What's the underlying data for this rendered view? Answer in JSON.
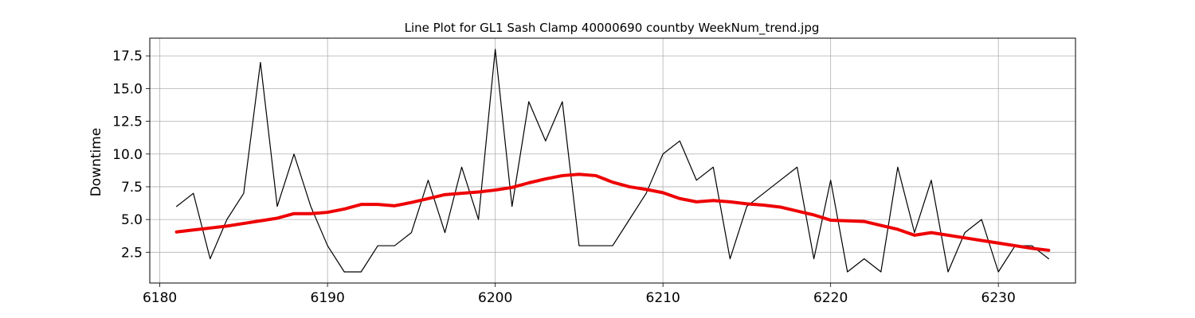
{
  "chart_data": {
    "type": "line",
    "title": "Line Plot for GL1 Sash Clamp 40000690 countby WeekNum_trend.jpg",
    "xlabel": "",
    "ylabel": "Downtime",
    "xlim": [
      6179.4,
      6234.6
    ],
    "ylim": [
      0.15,
      18.85
    ],
    "xticks": [
      6180,
      6190,
      6200,
      6210,
      6220,
      6230
    ],
    "yticks": [
      2.5,
      5.0,
      7.5,
      10.0,
      12.5,
      15.0,
      17.5
    ],
    "grid": true,
    "x": [
      6181,
      6182,
      6183,
      6184,
      6185,
      6186,
      6187,
      6188,
      6189,
      6190,
      6191,
      6192,
      6193,
      6194,
      6195,
      6196,
      6197,
      6198,
      6199,
      6200,
      6201,
      6202,
      6203,
      6204,
      6205,
      6206,
      6207,
      6208,
      6209,
      6210,
      6211,
      6212,
      6213,
      6214,
      6215,
      6216,
      6217,
      6218,
      6219,
      6220,
      6221,
      6222,
      6223,
      6224,
      6225,
      6226,
      6227,
      6228,
      6229,
      6230,
      6231,
      6232,
      6233
    ],
    "series": [
      {
        "color": "#000000",
        "width": 1.2,
        "values": [
          6,
          7,
          2,
          5,
          7,
          17,
          6,
          10,
          6,
          3,
          1,
          1,
          3,
          3,
          4,
          8,
          4,
          9,
          5,
          18,
          6,
          14,
          11,
          14,
          3,
          3,
          3,
          5,
          7,
          10,
          11,
          8,
          9,
          2,
          6,
          7,
          8,
          9,
          2,
          8,
          1,
          2,
          1,
          9,
          4,
          8,
          1,
          4,
          5,
          1,
          3,
          3,
          2
        ]
      },
      {
        "color": "#ee0000",
        "width": 4,
        "values": [
          4.05,
          4.2,
          4.35,
          4.5,
          4.7,
          4.9,
          5.1,
          5.45,
          5.45,
          5.55,
          5.8,
          6.15,
          6.15,
          6.05,
          6.3,
          6.6,
          6.9,
          7.0,
          7.1,
          7.25,
          7.45,
          7.8,
          8.1,
          8.35,
          8.45,
          8.35,
          7.85,
          7.5,
          7.3,
          7.05,
          6.6,
          6.35,
          6.45,
          6.35,
          6.2,
          6.1,
          5.95,
          5.65,
          5.35,
          4.95,
          4.9,
          4.85,
          4.55,
          4.25,
          3.8,
          4.0,
          3.8,
          3.6,
          3.4,
          3.2,
          3.0,
          2.8,
          2.65
        ]
      }
    ]
  }
}
